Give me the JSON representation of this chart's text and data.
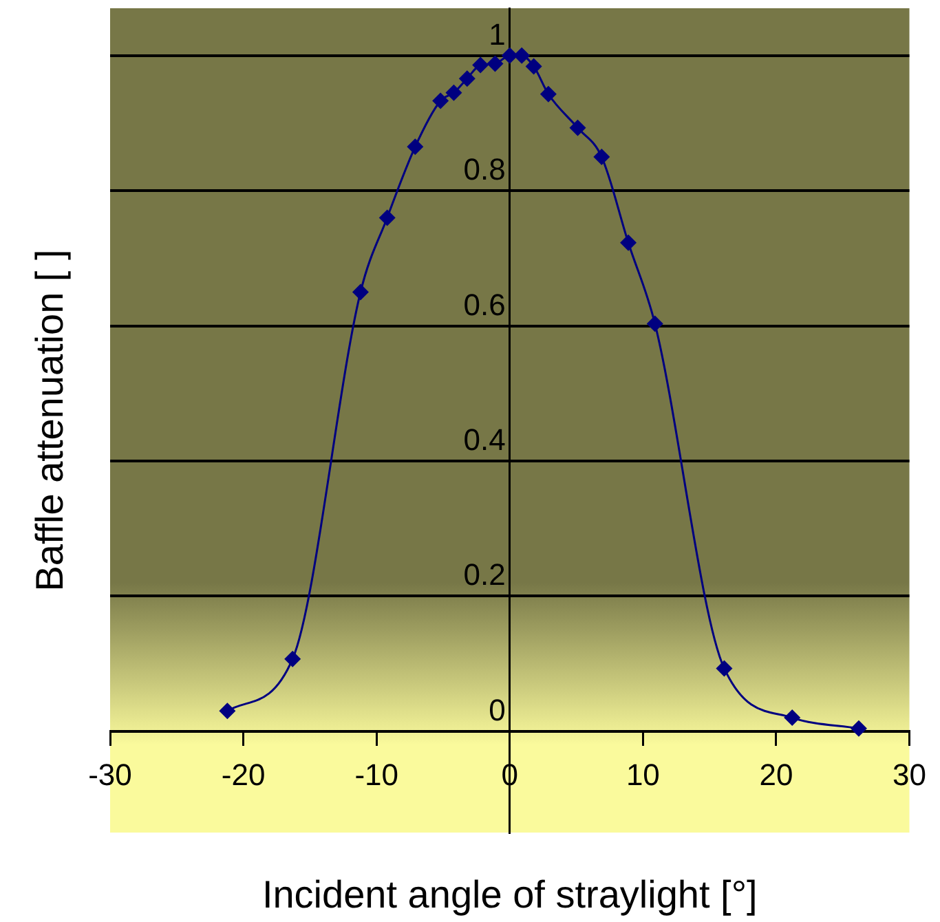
{
  "chart_data": {
    "type": "line",
    "xlabel": "Incident angle of straylight [°]",
    "ylabel": "Baffle attenuation [ ]",
    "x": [
      -21.2,
      -16.3,
      -11.2,
      -9.2,
      -7.1,
      -5.2,
      -4.2,
      -3.2,
      -2.2,
      -1.1,
      0,
      0.9,
      1.8,
      2.9,
      5.1,
      6.9,
      8.9,
      10.9,
      16.1,
      21.2,
      26.2
    ],
    "series": [
      {
        "color": "#000080",
        "values": [
          0.03,
          0.107,
          0.65,
          0.76,
          0.865,
          0.933,
          0.945,
          0.966,
          0.986,
          0.988,
          1.0,
          1.0,
          0.984,
          0.943,
          0.893,
          0.85,
          0.723,
          0.603,
          0.093,
          0.02,
          0.004
        ]
      }
    ],
    "xlim": [
      -30,
      30
    ],
    "xticks": [
      -30,
      -20,
      -10,
      0,
      10,
      20,
      30
    ],
    "ylim": [
      -0.15,
      1.07
    ],
    "yticks": [
      0,
      0.2,
      0.4,
      0.6,
      0.8,
      1
    ],
    "grid": "y",
    "legend": false,
    "marker": "diamond",
    "line_style": "solid"
  }
}
